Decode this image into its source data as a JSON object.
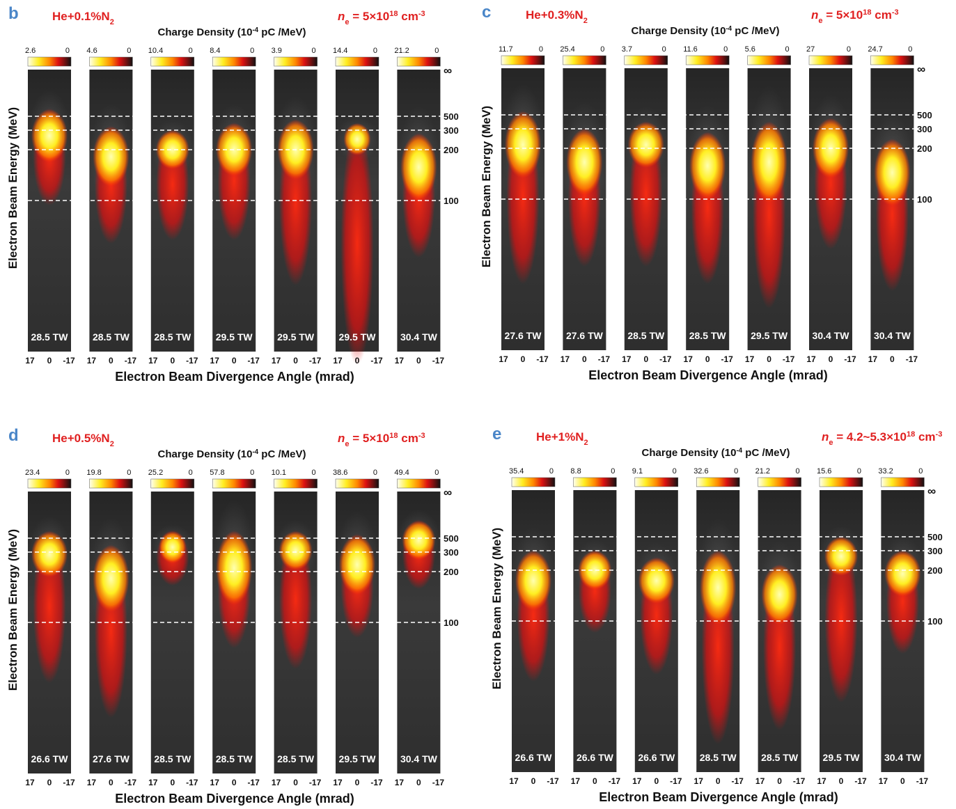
{
  "panels": [
    {
      "label": "b",
      "gas": "He+0.1%N",
      "gas_subscript": "2",
      "density": {
        "symbol": "n",
        "subscript": "e",
        "text": " = 5×10",
        "exponent": "18",
        "unit": " cm",
        "unit_exponent": "-3"
      },
      "colorbar_title": {
        "text": "Charge Density (10",
        "exponent": "-4",
        "unit": " pC /MeV)"
      },
      "colorbar_min": "0",
      "shots": [
        {
          "max": "2.6",
          "power": "28.5 TW"
        },
        {
          "max": "4.6",
          "power": "28.5 TW"
        },
        {
          "max": "10.4",
          "power": "28.5 TW"
        },
        {
          "max": "8.4",
          "power": "29.5 TW"
        },
        {
          "max": "3.9",
          "power": "29.5 TW"
        },
        {
          "max": "14.4",
          "power": "29.5 TW"
        },
        {
          "max": "21.2",
          "power": "30.4 TW"
        }
      ],
      "energy_ticks": [
        "∞",
        "500",
        "300",
        "200",
        "100"
      ],
      "angle_ticks": [
        "17",
        "0",
        "-17"
      ],
      "y_label": "Electron Beam Energy (MeV)",
      "x_label": "Electron Beam Divergence Angle (mrad)"
    },
    {
      "label": "c",
      "gas": "He+0.3%N",
      "gas_subscript": "2",
      "density": {
        "symbol": "n",
        "subscript": "e",
        "text": " = 5×10",
        "exponent": "18",
        "unit": " cm",
        "unit_exponent": "-3"
      },
      "colorbar_title": {
        "text": "Charge Density (10",
        "exponent": "-4",
        "unit": " pC /MeV)"
      },
      "colorbar_min": "0",
      "shots": [
        {
          "max": "11.7",
          "power": "27.6 TW"
        },
        {
          "max": "25.4",
          "power": "27.6 TW"
        },
        {
          "max": "3.7",
          "power": "28.5 TW"
        },
        {
          "max": "11.6",
          "power": "28.5 TW"
        },
        {
          "max": "5.6",
          "power": "29.5 TW"
        },
        {
          "max": "27",
          "power": "30.4 TW"
        },
        {
          "max": "24.7",
          "power": "30.4 TW"
        }
      ],
      "energy_ticks": [
        "∞",
        "500",
        "300",
        "200",
        "100"
      ],
      "angle_ticks": [
        "17",
        "0",
        "-17"
      ],
      "y_label": "Electron Beam  Energy (MeV)",
      "x_label": "Electron Beam Divergence Angle (mrad)"
    },
    {
      "label": "d",
      "gas": "He+0.5%N",
      "gas_subscript": "2",
      "density": {
        "symbol": "n",
        "subscript": "e",
        "text": " = 5×10",
        "exponent": "18",
        "unit": " cm",
        "unit_exponent": "-3"
      },
      "colorbar_title": {
        "text": "Charge Density (10",
        "exponent": "-4",
        "unit": " pC /MeV)"
      },
      "colorbar_min": "0",
      "shots": [
        {
          "max": "23.4",
          "power": "26.6 TW"
        },
        {
          "max": "19.8",
          "power": "27.6 TW"
        },
        {
          "max": "25.2",
          "power": "28.5 TW"
        },
        {
          "max": "57.8",
          "power": "28.5 TW"
        },
        {
          "max": "10.1",
          "power": "28.5 TW"
        },
        {
          "max": "38.6",
          "power": "29.5 TW"
        },
        {
          "max": "49.4",
          "power": "30.4 TW"
        }
      ],
      "energy_ticks": [
        "∞",
        "500",
        "300",
        "200",
        "100"
      ],
      "angle_ticks": [
        "17",
        "0",
        "-17"
      ],
      "y_label": "Electron Beam Energy (MeV)",
      "x_label": "Electron Beam Divergence Angle (mrad)"
    },
    {
      "label": "e",
      "gas": "He+1%N",
      "gas_subscript": "2",
      "density": {
        "symbol": "n",
        "subscript": "e",
        "text": " = 4.2~5.3×10",
        "exponent": "18",
        "unit": " cm",
        "unit_exponent": "-3"
      },
      "colorbar_title": {
        "text": "Charge Density (10",
        "exponent": "-4",
        "unit": " pC /MeV)"
      },
      "colorbar_min": "0",
      "shots": [
        {
          "max": "35.4",
          "power": "26.6 TW"
        },
        {
          "max": "8.8",
          "power": "26.6 TW"
        },
        {
          "max": "9.1",
          "power": "26.6 TW"
        },
        {
          "max": "32.6",
          "power": "28.5 TW"
        },
        {
          "max": "21.2",
          "power": "28.5 TW"
        },
        {
          "max": "15.6",
          "power": "29.5 TW"
        },
        {
          "max": "33.2",
          "power": "30.4 TW"
        }
      ],
      "energy_ticks": [
        "∞",
        "500",
        "300",
        "200",
        "100"
      ],
      "angle_ticks": [
        "17",
        "0",
        "-17"
      ],
      "y_label": "Electron Beam Energy (MeV)",
      "x_label": "Electron Beam Divergence Angle (mrad)"
    }
  ]
}
